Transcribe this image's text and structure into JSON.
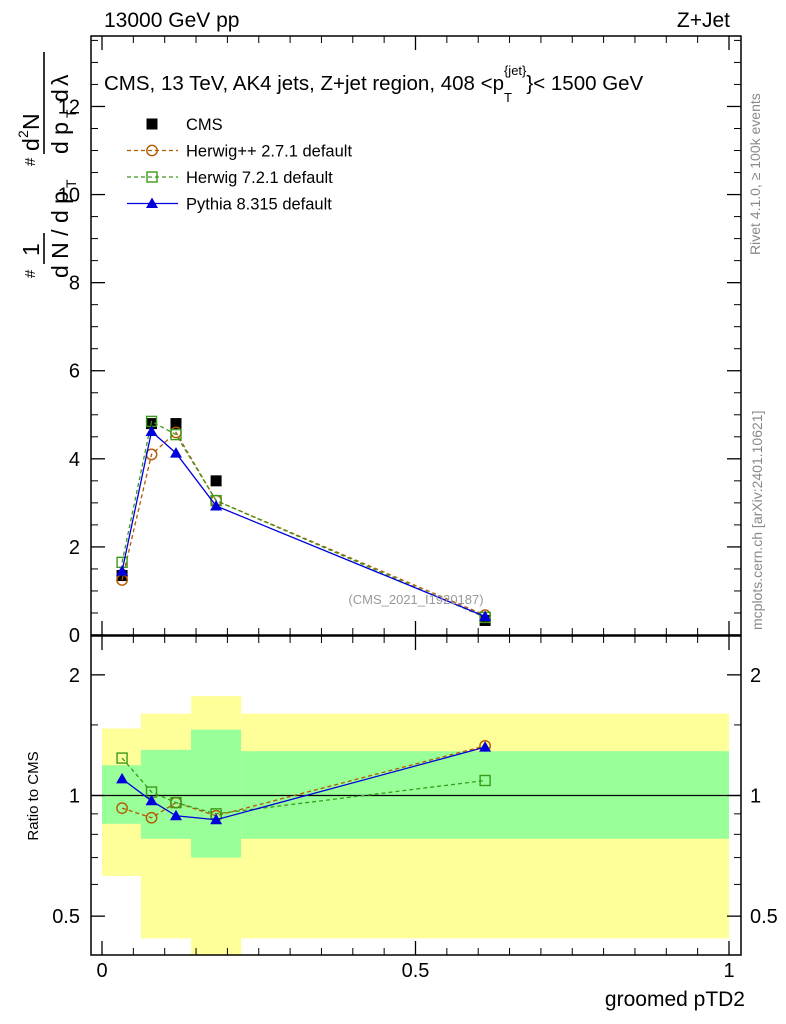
{
  "header": {
    "left": "13000 GeV pp",
    "right": "Z+Jet"
  },
  "side_labels": {
    "rivet": "Rivet 4.1.0, ≥ 100k events",
    "mcplots": "mcplots.cern.ch [arXiv:2401.10621]"
  },
  "chart_data": [
    {
      "type": "line",
      "panel": "main",
      "title": "CMS, 13 TeV, AK4 jets, Z+jet region, 408 <p_T^{jet}< 1500 GeV",
      "ylabel": "1/dN/dpT · d²N/dpT dλ",
      "watermark": "(CMS_2021_I1920187)",
      "xlim": [
        0,
        1
      ],
      "ylim": [
        0,
        13.6
      ],
      "yticks": [
        0,
        2,
        4,
        6,
        8,
        10,
        12
      ],
      "grid": false,
      "legend_position": "top-left",
      "x": [
        0.032,
        0.079,
        0.118,
        0.182,
        0.611
      ],
      "series": [
        {
          "name": "CMS",
          "color": "#000000",
          "marker": "square-filled",
          "line": "none",
          "values": [
            1.35,
            4.8,
            4.8,
            3.5,
            0.33
          ]
        },
        {
          "name": "Herwig++ 2.7.1 default",
          "color": "#b35900",
          "marker": "circle-open",
          "line": "dashed",
          "values": [
            1.25,
            4.1,
            4.6,
            3.05,
            0.45
          ]
        },
        {
          "name": "Herwig 7.2.1 default",
          "color": "#3a9a1a",
          "marker": "square-open",
          "line": "dashed",
          "values": [
            1.65,
            4.85,
            4.55,
            3.05,
            0.4
          ]
        },
        {
          "name": "Pythia 8.315 default",
          "color": "#0000dd",
          "marker": "triangle-filled",
          "line": "solid",
          "values": [
            1.45,
            4.62,
            4.13,
            2.93,
            0.42
          ]
        }
      ]
    },
    {
      "type": "line",
      "panel": "ratio",
      "ylabel": "Ratio to CMS",
      "xlabel": "groomed pTD2",
      "xlim": [
        0,
        1
      ],
      "xticks": [
        0,
        0.5,
        1
      ],
      "xtick_labels": [
        "0",
        "0.5",
        "1"
      ],
      "yticks": [
        0.5,
        1,
        2
      ],
      "ytick_labels": [
        "0.5",
        "1",
        "2"
      ],
      "ylim": [
        0.4,
        2.5
      ],
      "log_y": true,
      "reference_line": 1,
      "bands": [
        {
          "x0": 0.0,
          "x1": 0.062,
          "stat": [
            0.85,
            1.19
          ],
          "total": [
            0.63,
            1.47
          ]
        },
        {
          "x0": 0.062,
          "x1": 0.142,
          "stat": [
            0.78,
            1.3
          ],
          "total": [
            0.44,
            1.6
          ]
        },
        {
          "x0": 0.142,
          "x1": 0.222,
          "stat": [
            0.7,
            1.46
          ],
          "total": [
            0.3,
            1.77
          ]
        },
        {
          "x0": 0.222,
          "x1": 1.0,
          "stat": [
            0.78,
            1.29
          ],
          "total": [
            0.44,
            1.6
          ]
        }
      ],
      "band_colors": {
        "stat": "#99ff99",
        "total": "#ffff99"
      },
      "x": [
        0.032,
        0.079,
        0.118,
        0.182,
        0.611
      ],
      "series": [
        {
          "name": "Herwig++ 2.7.1 default",
          "color": "#b35900",
          "marker": "circle-open",
          "line": "dashed",
          "values": [
            0.93,
            0.88,
            0.96,
            0.89,
            1.33
          ]
        },
        {
          "name": "Herwig 7.2.1 default",
          "color": "#3a9a1a",
          "marker": "square-open",
          "line": "dashed",
          "values": [
            1.24,
            1.02,
            0.96,
            0.9,
            1.09
          ]
        },
        {
          "name": "Pythia 8.315 default",
          "color": "#0000dd",
          "marker": "triangle-filled",
          "line": "solid",
          "values": [
            1.1,
            0.97,
            0.89,
            0.87,
            1.32
          ]
        }
      ]
    }
  ]
}
